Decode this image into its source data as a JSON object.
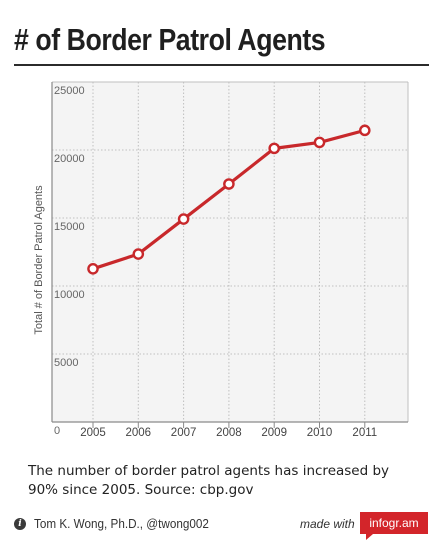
{
  "title": "# of Border Patrol Agents",
  "caption": "The number of border patrol agents has increased by 90% since 2005. Source: cbp.gov",
  "footer": {
    "author": "Tom K. Wong, Ph.D., @twong002",
    "made_with": "made with",
    "brand": "infogr.am",
    "info_icon": "info-icon"
  },
  "colors": {
    "line": "#c8282b",
    "grid": "#bfbfbf",
    "plot_bg": "#f4f4f4",
    "badge": "#d3252a"
  },
  "chart_data": {
    "type": "line",
    "x": [
      "2005",
      "2006",
      "2007",
      "2008",
      "2009",
      "2010",
      "2011"
    ],
    "series": [
      {
        "values": [
          11264,
          12349,
          14923,
          17499,
          20119,
          20558,
          21444
        ]
      }
    ],
    "ylabel": "Total # of Border Patrol Agents",
    "ylim": [
      0,
      25000
    ],
    "yticks": [
      "0",
      "5000",
      "10000",
      "15000",
      "20000",
      "25000"
    ],
    "grid": true,
    "legend": "none"
  }
}
